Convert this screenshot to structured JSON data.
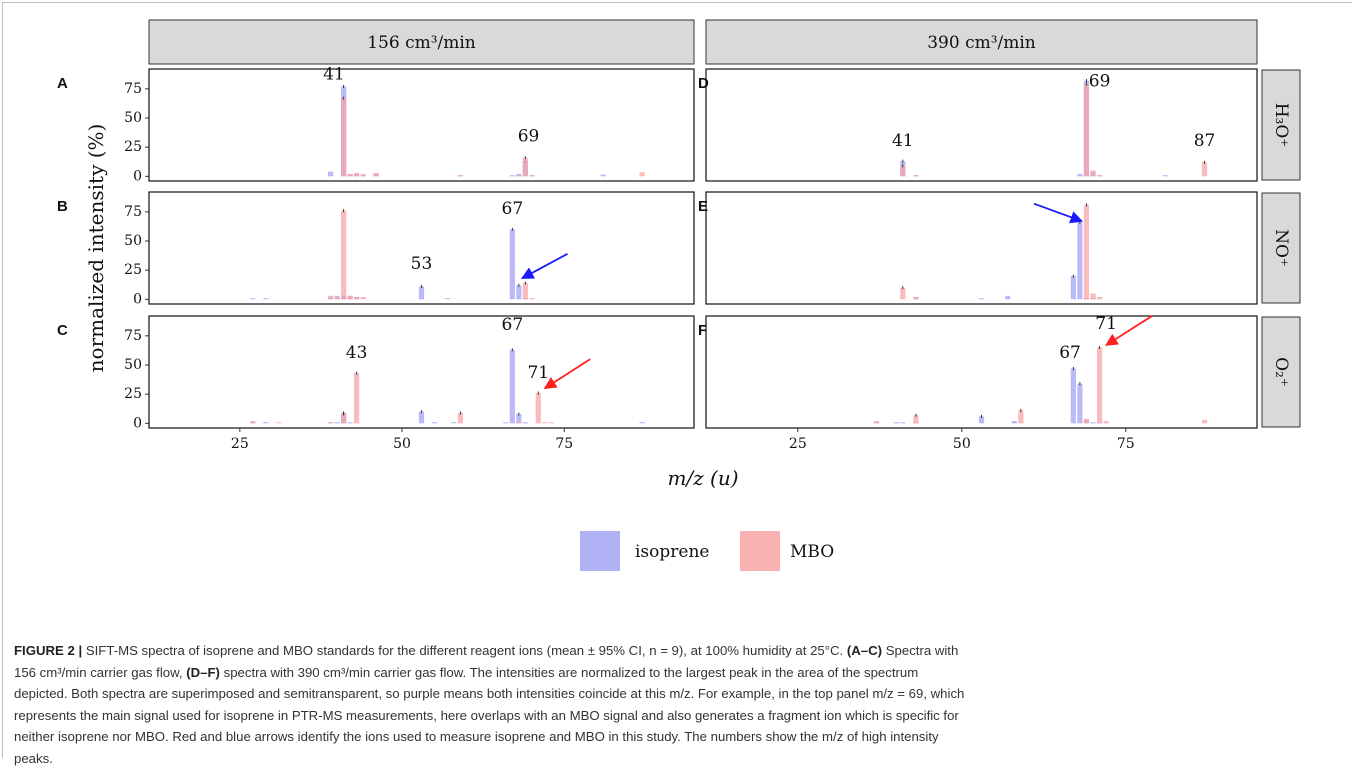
{
  "chart_data": {
    "type": "bar",
    "panels_overlay": "isoprene and MBO bars superimposed, semitransparent",
    "column_strips": [
      "156 cm³/min",
      "390 cm³/min"
    ],
    "row_strips": [
      "H₃O⁺",
      "NO⁺",
      "O₂⁺"
    ],
    "ylabel": "normalized intensity (%)",
    "xlabel": "m/z (u)",
    "xlim": [
      11,
      95
    ],
    "ylim": [
      -4,
      92
    ],
    "xticks": [
      "25",
      "50",
      "75"
    ],
    "yticks": [
      "0",
      "25",
      "50",
      "75"
    ],
    "legend": {
      "position": "bottom",
      "items": [
        {
          "name": "isoprene",
          "color": "#a3a3f5"
        },
        {
          "name": "MBO",
          "color": "#f7a4a4"
        }
      ]
    },
    "colors": {
      "isoprene": "#a3a3f5",
      "MBO": "#f7a4a4",
      "overlap": "#a869b0",
      "strip": "#d9d9d9",
      "blue_arrow": "#1a1aff",
      "red_arrow": "#ff2020"
    },
    "panels": [
      {
        "label": "A",
        "row": 0,
        "col": 0,
        "isoprene": [
          [
            39,
            4
          ],
          [
            41,
            77
          ],
          [
            42,
            2
          ],
          [
            43,
            2
          ],
          [
            44,
            1
          ],
          [
            46,
            2
          ],
          [
            59,
            1
          ],
          [
            67,
            1
          ],
          [
            68,
            2
          ],
          [
            69,
            13
          ],
          [
            70,
            1
          ],
          [
            81,
            1.5
          ]
        ],
        "MBO": [
          [
            41,
            67
          ],
          [
            42,
            2
          ],
          [
            43,
            3
          ],
          [
            44,
            2
          ],
          [
            46,
            3
          ],
          [
            59,
            1
          ],
          [
            68,
            1
          ],
          [
            69,
            16
          ],
          [
            70,
            1
          ],
          [
            87,
            3.5
          ]
        ],
        "peak_labels": [
          {
            "text": "41",
            "x": 39.5,
            "y": 83
          },
          {
            "text": "69",
            "x": 69.5,
            "y": 30
          }
        ],
        "arrows": []
      },
      {
        "label": "B",
        "row": 1,
        "col": 0,
        "isoprene": [
          [
            27,
            1
          ],
          [
            29,
            1
          ],
          [
            39,
            2
          ],
          [
            40,
            3
          ],
          [
            41,
            3
          ],
          [
            42,
            3
          ],
          [
            43,
            2
          ],
          [
            53,
            11
          ],
          [
            57,
            1
          ],
          [
            67,
            60
          ],
          [
            68,
            12
          ],
          [
            69,
            1
          ]
        ],
        "MBO": [
          [
            39,
            3
          ],
          [
            40,
            2
          ],
          [
            41,
            76
          ],
          [
            42,
            3
          ],
          [
            43,
            2
          ],
          [
            44,
            2
          ],
          [
            69,
            14
          ],
          [
            70,
            1
          ]
        ],
        "peak_labels": [
          {
            "text": "53",
            "x": 53,
            "y": 26
          },
          {
            "text": "67",
            "x": 67,
            "y": 73
          }
        ],
        "arrows": [
          {
            "color": "blue",
            "from": [
              75.5,
              39
            ],
            "to": [
              68.5,
              18
            ]
          }
        ]
      },
      {
        "label": "C",
        "row": 2,
        "col": 0,
        "isoprene": [
          [
            27,
            1
          ],
          [
            29,
            1
          ],
          [
            39,
            1
          ],
          [
            40,
            1
          ],
          [
            41,
            9
          ],
          [
            42,
            1
          ],
          [
            53,
            10
          ],
          [
            55,
            1
          ],
          [
            58,
            1
          ],
          [
            66,
            1
          ],
          [
            67,
            63
          ],
          [
            68,
            8
          ],
          [
            69,
            1
          ],
          [
            87,
            1
          ]
        ],
        "MBO": [
          [
            27,
            2
          ],
          [
            31,
            1
          ],
          [
            39,
            1
          ],
          [
            41,
            8
          ],
          [
            43,
            43
          ],
          [
            59,
            9
          ],
          [
            68,
            1
          ],
          [
            71,
            26
          ],
          [
            72,
            1
          ],
          [
            73,
            1
          ]
        ],
        "peak_labels": [
          {
            "text": "43",
            "x": 43,
            "y": 56
          },
          {
            "text": "67",
            "x": 67,
            "y": 80
          },
          {
            "text": "71",
            "x": 71,
            "y": 39
          }
        ],
        "arrows": [
          {
            "color": "red",
            "from": [
              79,
              55
            ],
            "to": [
              72,
              30
            ]
          }
        ]
      },
      {
        "label": "D",
        "row": 0,
        "col": 1,
        "isoprene": [
          [
            41,
            13
          ],
          [
            43,
            1
          ],
          [
            68,
            2
          ],
          [
            69,
            82
          ],
          [
            70,
            4
          ],
          [
            71,
            1
          ],
          [
            81,
            1
          ]
        ],
        "MBO": [
          [
            41,
            9
          ],
          [
            43,
            1
          ],
          [
            69,
            79
          ],
          [
            70,
            5
          ],
          [
            71,
            1
          ],
          [
            87,
            12
          ]
        ],
        "peak_labels": [
          {
            "text": "41",
            "x": 41,
            "y": 26
          },
          {
            "text": "69",
            "x": 71,
            "y": 77
          },
          {
            "text": "87",
            "x": 87,
            "y": 26
          }
        ],
        "arrows": []
      },
      {
        "label": "E",
        "row": 1,
        "col": 1,
        "isoprene": [
          [
            43,
            2
          ],
          [
            53,
            1
          ],
          [
            57,
            3
          ],
          [
            67,
            20
          ],
          [
            68,
            66
          ],
          [
            69,
            1
          ],
          [
            70,
            1
          ]
        ],
        "MBO": [
          [
            41,
            10
          ],
          [
            43,
            2
          ],
          [
            69,
            81
          ],
          [
            70,
            5
          ],
          [
            71,
            2
          ]
        ],
        "peak_labels": [],
        "arrows": [
          {
            "color": "blue",
            "from": [
              61,
              82
            ],
            "to": [
              68.3,
              67
            ]
          }
        ]
      },
      {
        "label": "F",
        "row": 2,
        "col": 1,
        "isoprene": [
          [
            37,
            1
          ],
          [
            40,
            1
          ],
          [
            41,
            1
          ],
          [
            43,
            1
          ],
          [
            53,
            6
          ],
          [
            58,
            2
          ],
          [
            67,
            47
          ],
          [
            68,
            34
          ],
          [
            69,
            3
          ],
          [
            70,
            1
          ],
          [
            71,
            1
          ]
        ],
        "MBO": [
          [
            37,
            2
          ],
          [
            43,
            7
          ],
          [
            59,
            11
          ],
          [
            69,
            4
          ],
          [
            71,
            65
          ],
          [
            72,
            2
          ],
          [
            87,
            3
          ]
        ],
        "peak_labels": [
          {
            "text": "67",
            "x": 66.5,
            "y": 56
          },
          {
            "text": "71",
            "x": 72,
            "y": 81
          }
        ],
        "arrows": [
          {
            "color": "red",
            "from": [
              79,
              92
            ],
            "to": [
              72,
              67
            ]
          }
        ]
      }
    ]
  },
  "caption": {
    "figure_label": "FIGURE 2 |",
    "line1": " SIFT-MS spectra of isoprene and MBO standards for the different reagent ions (mean ± 95% CI, n = 9), at 100% humidity at 25°C. ",
    "line1_bold": "(A–C)",
    "line1_end": " Spectra with",
    "line2_a": "156 cm³/min carrier gas flow, ",
    "line2_bold": "(D–F)",
    "line2_b": " spectra with 390 cm³/min carrier gas flow. The intensities are normalized to the largest peak in the area of the spectrum",
    "line3": "depicted. Both spectra are superimposed and semitransparent, so purple means both intensities coincide at this m/z. For example, in the top panel m/z = 69, which",
    "line4": "represents the main signal used for isoprene in PTR-MS measurements, here overlaps with an MBO signal and also generates a fragment ion which is specific for",
    "line5": "neither isoprene nor MBO. Red and blue arrows identify the ions used to measure isoprene and MBO in this study. The numbers show the m/z of high intensity",
    "line6": "peaks."
  }
}
